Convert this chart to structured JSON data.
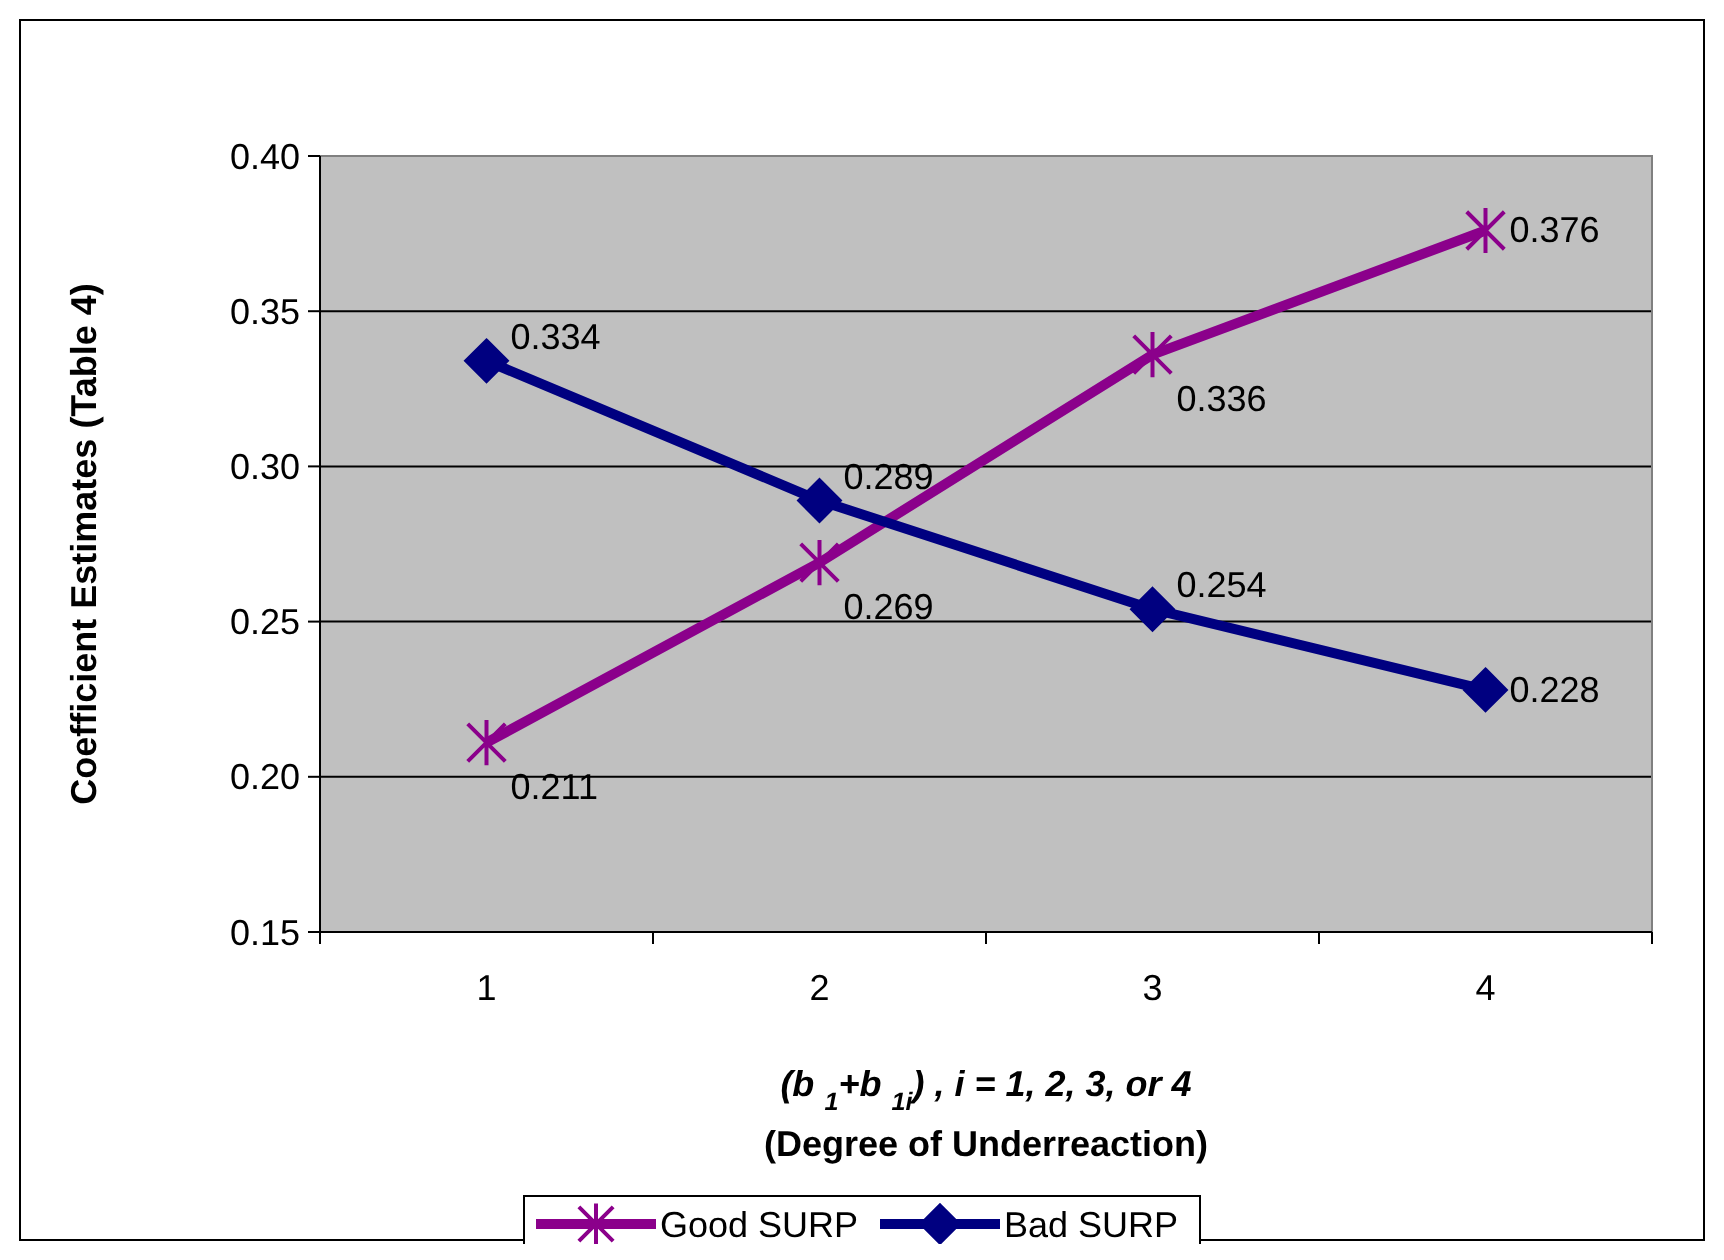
{
  "chart_data": {
    "type": "line",
    "ylabel": "Coefficient Estimates (Table 4)",
    "xlabel": "(b $_{1}$+b $_{1i}$) , i = 1, 2, 3, or 4\n(Degree of Underreaction)",
    "categories": [
      "1",
      "2",
      "3",
      "4"
    ],
    "series": [
      {
        "name": "Good SURP",
        "color": "#8b008b",
        "marker": "cross",
        "values": [
          0.211,
          0.269,
          0.336,
          0.376
        ]
      },
      {
        "name": "Bad SURP",
        "color": "#000080",
        "marker": "diamond",
        "values": [
          0.334,
          0.289,
          0.254,
          0.228
        ]
      }
    ],
    "ylim": [
      0.15,
      0.4
    ],
    "yticks": [
      {
        "value": 0.15,
        "label": "0.15"
      },
      {
        "value": 0.2,
        "label": "0.20"
      },
      {
        "value": 0.25,
        "label": "0.25"
      },
      {
        "value": 0.3,
        "label": "0.30"
      },
      {
        "value": 0.35,
        "label": "0.35"
      },
      {
        "value": 0.4,
        "label": "0.40"
      }
    ],
    "grid": "y",
    "legend": "bottom",
    "data_labels": true,
    "line_style": "solid"
  }
}
